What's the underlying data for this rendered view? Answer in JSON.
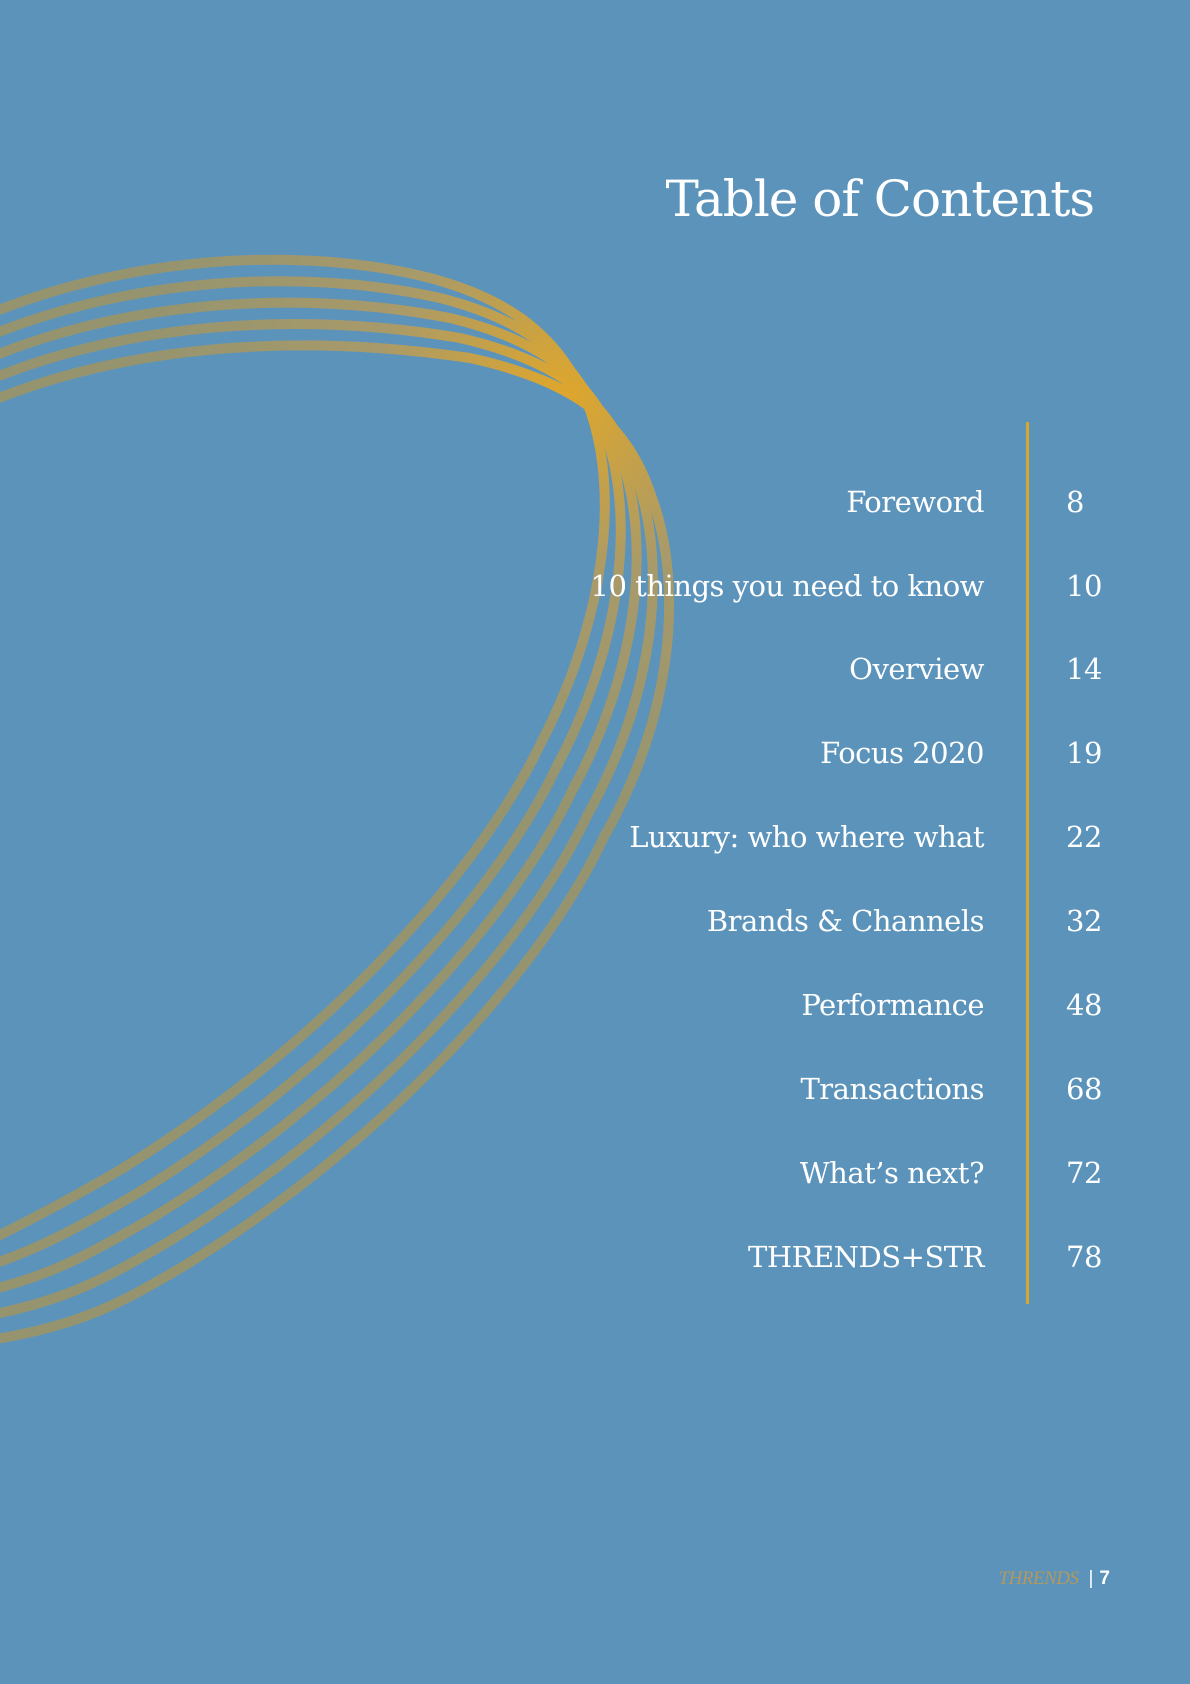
{
  "page_title": "Table of Contents",
  "colors": {
    "background": "#5b93bb",
    "accent_gold": "#d9a62b",
    "ring_stroke": "#a89a6a",
    "text": "#ffffff"
  },
  "toc": {
    "entries": [
      {
        "label": "Foreword",
        "page": "8"
      },
      {
        "label": "10 things you need to know",
        "page": "10"
      },
      {
        "label": "Overview",
        "page": "14"
      },
      {
        "label": "Focus 2020",
        "page": "19"
      },
      {
        "label": "Luxury: who where what",
        "page": "22"
      },
      {
        "label": "Brands & Channels",
        "page": "32"
      },
      {
        "label": "Performance",
        "page": "48"
      },
      {
        "label": "Transactions",
        "page": "68"
      },
      {
        "label": "What’s next?",
        "page": "72"
      },
      {
        "label": "THRENDS+STR",
        "page": "78"
      }
    ]
  },
  "footer": {
    "brand": "THRENDS",
    "separator": "|",
    "page_number": "7"
  }
}
